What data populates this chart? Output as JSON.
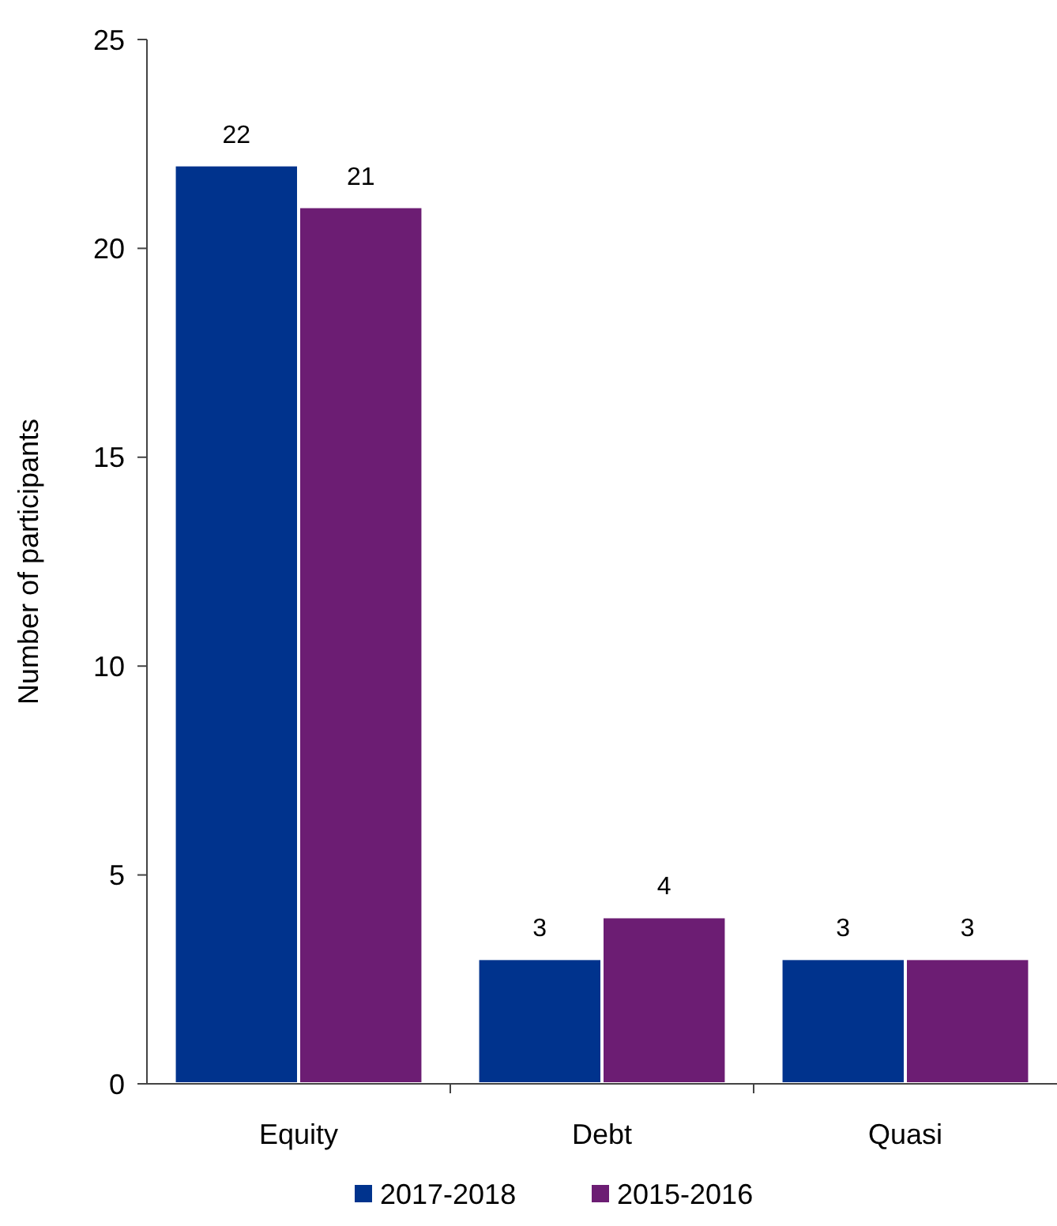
{
  "chart_data": {
    "type": "bar",
    "ylabel": "Number of participants",
    "categories": [
      "Equity",
      "Debt",
      "Quasi"
    ],
    "series": [
      {
        "name": "2017-2018",
        "color": "#00338d",
        "values": [
          22,
          3,
          3
        ]
      },
      {
        "name": "2015-2016",
        "color": "#6c1d73",
        "values": [
          21,
          4,
          3
        ]
      }
    ],
    "ylim": [
      0,
      25
    ],
    "yticks": [
      0,
      5,
      10,
      15,
      20,
      25
    ],
    "data_labels": true,
    "legend": "bottom",
    "grid": false
  }
}
